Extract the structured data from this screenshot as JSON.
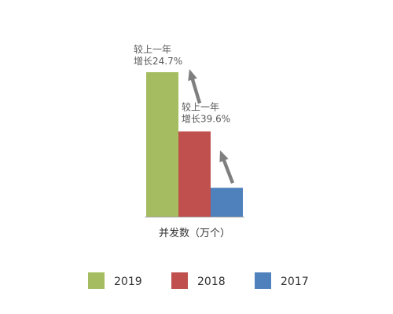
{
  "chart_data": {
    "type": "bar",
    "xlabel": "并发数（万个）",
    "series": [
      {
        "name": "2019",
        "value": 100,
        "color": "#a5bc60"
      },
      {
        "name": "2018",
        "value": 59.0,
        "color": "#c0504d"
      },
      {
        "name": "2017",
        "value": 20.0,
        "color": "#4f81bd"
      }
    ],
    "annotations": [
      {
        "line1": "较上一年",
        "line2": "增长24.7%"
      },
      {
        "line1": "较上一年",
        "line2": "增长39.6%"
      }
    ],
    "legend_position": "bottom",
    "grid": false,
    "axis_color": "#a6a6a6",
    "arrow_color": "#7f7f7f"
  }
}
